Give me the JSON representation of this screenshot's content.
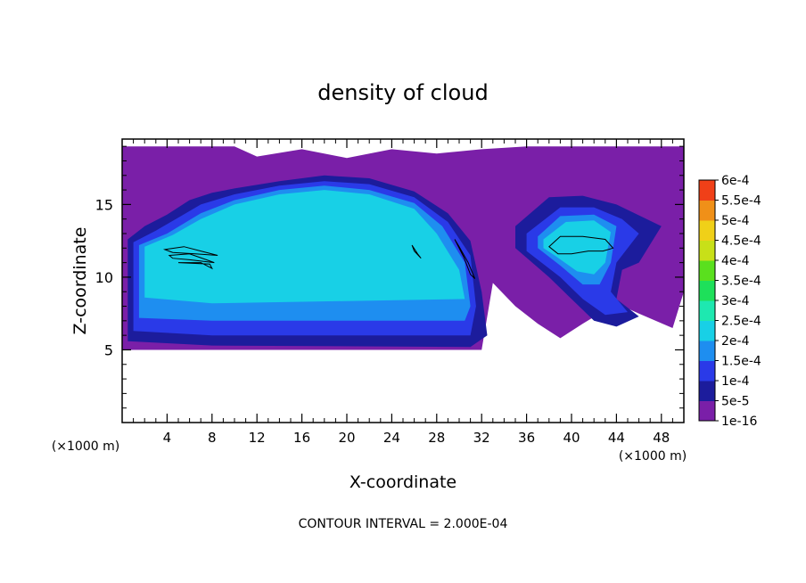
{
  "chart_data": {
    "type": "heatmap",
    "title": "density of cloud",
    "xlabel": "X-coordinate",
    "ylabel": "Z-coordinate",
    "x_unit_label": "(×1000 m)",
    "y_unit_label": "(×1000 m)",
    "xlim": [
      0,
      50
    ],
    "ylim": [
      0,
      19.5
    ],
    "x_ticks": [
      4,
      8,
      12,
      16,
      20,
      24,
      28,
      32,
      36,
      40,
      44,
      48
    ],
    "y_ticks": [
      5,
      10,
      15
    ],
    "footer": "CONTOUR INTERVAL = 2.000E-04",
    "colorbar": {
      "labels": [
        "1e-16",
        "5e-5",
        "1e-4",
        "1.5e-4",
        "2e-4",
        "2.5e-4",
        "3e-4",
        "3.5e-4",
        "4e-4",
        "4.5e-4",
        "5e-4",
        "5.5e-4",
        "6e-4"
      ],
      "colors": [
        "#7a1fa8",
        "#1c1c9c",
        "#2a3ae8",
        "#1e8ef0",
        "#18d0e6",
        "#1ee8b0",
        "#1ee05a",
        "#5ae01e",
        "#c8e018",
        "#f0d018",
        "#f09018",
        "#f04018",
        "#f01818"
      ]
    },
    "contour_interval": 0.0002,
    "regions": [
      {
        "level": "1e-16",
        "polygon": [
          [
            0,
            19
          ],
          [
            10,
            19
          ],
          [
            12,
            18.3
          ],
          [
            16,
            18.8
          ],
          [
            20,
            18.2
          ],
          [
            24,
            18.8
          ],
          [
            28,
            18.5
          ],
          [
            32,
            18.8
          ],
          [
            36,
            19
          ],
          [
            50,
            19
          ],
          [
            50,
            9
          ],
          [
            49,
            6.5
          ],
          [
            46,
            7.5
          ],
          [
            44,
            8.2
          ],
          [
            41,
            6.8
          ],
          [
            39,
            5.8
          ],
          [
            37,
            6.8
          ],
          [
            35,
            8
          ],
          [
            33,
            9.6
          ],
          [
            32,
            5
          ],
          [
            0,
            5
          ]
        ]
      },
      {
        "level": "5e-5",
        "polygon": [
          [
            0.5,
            12.6
          ],
          [
            2,
            13.5
          ],
          [
            4,
            14.3
          ],
          [
            6,
            15.3
          ],
          [
            8,
            15.8
          ],
          [
            10,
            16.1
          ],
          [
            14,
            16.6
          ],
          [
            18,
            17
          ],
          [
            22,
            16.8
          ],
          [
            26,
            15.9
          ],
          [
            29,
            14.4
          ],
          [
            31,
            12.5
          ],
          [
            32,
            9
          ],
          [
            32.5,
            6
          ],
          [
            31,
            5.2
          ],
          [
            8,
            5.3
          ],
          [
            0.5,
            5.6
          ]
        ]
      },
      {
        "level": "5e-5",
        "polygon": [
          [
            35,
            13.5
          ],
          [
            38,
            15.5
          ],
          [
            41,
            15.6
          ],
          [
            44,
            15
          ],
          [
            48,
            13.5
          ],
          [
            46,
            11
          ],
          [
            44.5,
            10.5
          ],
          [
            44,
            8.5
          ],
          [
            46,
            7.3
          ],
          [
            44,
            6.6
          ],
          [
            42,
            7
          ],
          [
            40,
            8.5
          ],
          [
            38,
            10
          ],
          [
            35,
            12
          ]
        ]
      },
      {
        "level": "1e-4",
        "polygon": [
          [
            1,
            12.4
          ],
          [
            3,
            13.2
          ],
          [
            5,
            14.1
          ],
          [
            7,
            15
          ],
          [
            10,
            15.7
          ],
          [
            14,
            16.3
          ],
          [
            18,
            16.6
          ],
          [
            22,
            16.4
          ],
          [
            26,
            15.5
          ],
          [
            29,
            13.8
          ],
          [
            31,
            11.5
          ],
          [
            31.5,
            8
          ],
          [
            31,
            6
          ],
          [
            8,
            6
          ],
          [
            1,
            6.3
          ]
        ]
      },
      {
        "level": "1e-4",
        "polygon": [
          [
            36,
            13
          ],
          [
            39,
            14.8
          ],
          [
            42,
            14.8
          ],
          [
            44.5,
            14
          ],
          [
            46,
            13
          ],
          [
            44,
            11
          ],
          [
            43.5,
            9
          ],
          [
            45,
            7.6
          ],
          [
            43,
            7.4
          ],
          [
            41,
            8.5
          ],
          [
            39,
            10
          ],
          [
            36,
            11.8
          ]
        ]
      },
      {
        "level": "1.5e-4",
        "polygon": [
          [
            1.5,
            12.2
          ],
          [
            4,
            13
          ],
          [
            7,
            14.4
          ],
          [
            10,
            15.3
          ],
          [
            14,
            16
          ],
          [
            18,
            16.3
          ],
          [
            22,
            16
          ],
          [
            26,
            15.1
          ],
          [
            28.5,
            13.5
          ],
          [
            30.5,
            11
          ],
          [
            31,
            8
          ],
          [
            30.5,
            7
          ],
          [
            8,
            7
          ],
          [
            1.5,
            7.2
          ]
        ]
      },
      {
        "level": "1.5e-4",
        "polygon": [
          [
            37,
            12.8
          ],
          [
            39,
            14.2
          ],
          [
            42,
            14.3
          ],
          [
            44,
            13.5
          ],
          [
            43.5,
            11
          ],
          [
            42.5,
            9.5
          ],
          [
            41,
            9.5
          ],
          [
            39,
            10.8
          ],
          [
            37,
            12
          ]
        ]
      },
      {
        "level": "2e-4",
        "polygon": [
          [
            2,
            12.1
          ],
          [
            4.5,
            12.9
          ],
          [
            7,
            14
          ],
          [
            10,
            15
          ],
          [
            14,
            15.7
          ],
          [
            18,
            16
          ],
          [
            22,
            15.7
          ],
          [
            26,
            14.7
          ],
          [
            28,
            13
          ],
          [
            30,
            10.5
          ],
          [
            30.5,
            8.5
          ],
          [
            8,
            8.2
          ],
          [
            2,
            8.6
          ]
        ]
      },
      {
        "level": "2e-4",
        "polygon": [
          [
            37.5,
            12.6
          ],
          [
            39.5,
            13.8
          ],
          [
            42,
            13.9
          ],
          [
            43.5,
            13.1
          ],
          [
            43,
            11
          ],
          [
            42,
            10.2
          ],
          [
            40.5,
            10.4
          ],
          [
            38.5,
            11.5
          ],
          [
            37.5,
            12
          ]
        ]
      }
    ],
    "contours": [
      {
        "level": "2e-4",
        "points": [
          [
            3.8,
            11.9
          ],
          [
            5.5,
            12.1
          ],
          [
            7,
            11.8
          ],
          [
            8.5,
            11.5
          ],
          [
            6.5,
            11.6
          ],
          [
            4.5,
            11.7
          ]
        ]
      },
      {
        "level": "2e-4",
        "points": [
          [
            4.2,
            11.5
          ],
          [
            6,
            11.6
          ],
          [
            7.5,
            11.2
          ],
          [
            8.2,
            11
          ],
          [
            6,
            11.2
          ],
          [
            4.5,
            11.3
          ]
        ]
      },
      {
        "level": "2e-4",
        "points": [
          [
            5,
            11
          ],
          [
            7,
            11
          ],
          [
            8,
            10.6
          ],
          [
            7.8,
            10.9
          ]
        ]
      },
      {
        "level": "2e-4",
        "points": [
          [
            25.8,
            12.2
          ],
          [
            26.3,
            11.6
          ],
          [
            26.6,
            11.3
          ],
          [
            26,
            11.8
          ]
        ]
      },
      {
        "level": "2e-4",
        "points": [
          [
            29.6,
            12.6
          ],
          [
            30.4,
            11.4
          ],
          [
            31,
            10.2
          ],
          [
            31.4,
            9.9
          ],
          [
            30.8,
            11
          ],
          [
            30,
            12.1
          ]
        ]
      },
      {
        "level": "2e-4",
        "points": [
          [
            38,
            12.1
          ],
          [
            39,
            12.8
          ],
          [
            41,
            12.8
          ],
          [
            43,
            12.6
          ],
          [
            43.7,
            12
          ],
          [
            42.8,
            11.8
          ],
          [
            41.5,
            11.8
          ],
          [
            40,
            11.6
          ],
          [
            38.8,
            11.6
          ]
        ]
      }
    ]
  }
}
